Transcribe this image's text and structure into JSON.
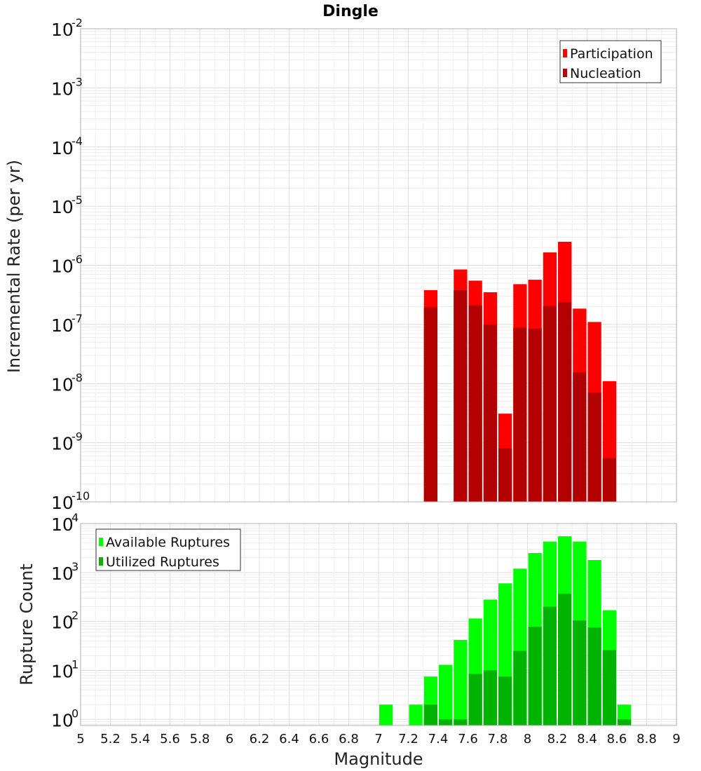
{
  "chart_data": [
    {
      "type": "bar",
      "title": "Dingle",
      "xlabel": "",
      "ylabel": "Incremental Rate (per yr)",
      "y_scale": "log",
      "xlim": [
        5,
        9
      ],
      "ylim": [
        1e-10,
        0.01
      ],
      "bar_width": 0.1,
      "legend_position": "top-right",
      "yticks": [
        {
          "base": "10",
          "exp": "-2"
        },
        {
          "base": "10",
          "exp": "-3"
        },
        {
          "base": "10",
          "exp": "-4"
        },
        {
          "base": "10",
          "exp": "-5"
        },
        {
          "base": "10",
          "exp": "-6"
        },
        {
          "base": "10",
          "exp": "-7"
        },
        {
          "base": "10",
          "exp": "-8"
        },
        {
          "base": "10",
          "exp": "-9"
        },
        {
          "base": "10",
          "exp": "-10"
        }
      ],
      "series": [
        {
          "name": "Participation",
          "color": "#ff0000",
          "x": [
            7.35,
            7.55,
            7.65,
            7.75,
            7.85,
            7.95,
            8.05,
            8.15,
            8.25,
            8.35,
            8.45,
            8.55
          ],
          "values": [
            3.8e-07,
            8.5e-07,
            5.5e-07,
            3.5e-07,
            3.1e-09,
            4.8e-07,
            5.7e-07,
            1.65e-06,
            2.5e-06,
            1.85e-07,
            1.1e-07,
            1.1e-08
          ]
        },
        {
          "name": "Nucleation",
          "color": "#b30000",
          "x": [
            7.35,
            7.55,
            7.65,
            7.75,
            7.85,
            7.95,
            8.05,
            8.15,
            8.25,
            8.35,
            8.45,
            8.55
          ],
          "values": [
            1.95e-07,
            3.8e-07,
            2.1e-07,
            1e-07,
            8e-10,
            8.8e-08,
            8.5e-08,
            2.05e-07,
            2.4e-07,
            1.55e-08,
            7e-09,
            5.5e-10
          ]
        }
      ]
    },
    {
      "type": "bar",
      "title": "",
      "xlabel": "Magnitude",
      "ylabel": "Rupture Count",
      "y_scale": "log",
      "xlim": [
        5,
        9
      ],
      "ylim": [
        0.75,
        10000
      ],
      "bar_width": 0.1,
      "legend_position": "top-left",
      "xticks": [
        "5",
        "5.2",
        "5.4",
        "5.6",
        "5.8",
        "6",
        "6.2",
        "6.4",
        "6.6",
        "6.8",
        "7",
        "7.2",
        "7.4",
        "7.6",
        "7.8",
        "8",
        "8.2",
        "8.4",
        "8.6",
        "8.8",
        "9"
      ],
      "yticks": [
        {
          "base": "10",
          "exp": "4"
        },
        {
          "base": "10",
          "exp": "3"
        },
        {
          "base": "10",
          "exp": "2"
        },
        {
          "base": "10",
          "exp": "1"
        },
        {
          "base": "10",
          "exp": "0"
        }
      ],
      "series": [
        {
          "name": "Available Ruptures",
          "color": "#00ff00",
          "x": [
            7.05,
            7.25,
            7.35,
            7.45,
            7.55,
            7.65,
            7.75,
            7.85,
            7.95,
            8.05,
            8.15,
            8.25,
            8.35,
            8.45,
            8.55,
            8.65
          ],
          "values": [
            2,
            2,
            7.5,
            13,
            42,
            115,
            280,
            600,
            1200,
            2500,
            4300,
            5500,
            4300,
            1800,
            170,
            2
          ]
        },
        {
          "name": "Utilized Ruptures",
          "color": "#00b300",
          "x": [
            7.35,
            7.45,
            7.55,
            7.65,
            7.75,
            7.85,
            7.95,
            8.05,
            8.15,
            8.25,
            8.35,
            8.45,
            8.55,
            8.65
          ],
          "values": [
            2,
            1,
            1,
            8.5,
            10,
            7.5,
            25,
            78,
            200,
            370,
            105,
            75,
            26,
            1
          ]
        }
      ]
    }
  ]
}
